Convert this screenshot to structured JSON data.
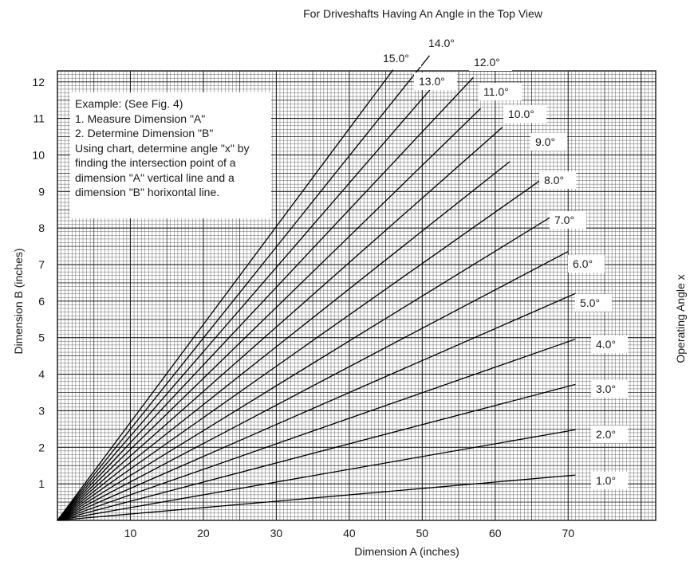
{
  "chart_data": {
    "type": "line",
    "title": "For Driveshafts Having An Angle in the Top View",
    "xlabel": "Dimension A (inches)",
    "ylabel": "Dimension B (inches)",
    "right_label": "Operating Angle x",
    "xlim": [
      0,
      82
    ],
    "ylim": [
      0,
      12.3
    ],
    "grid": true,
    "x_ticks": [
      10,
      20,
      30,
      40,
      50,
      60,
      70
    ],
    "y_ticks": [
      1,
      2,
      3,
      4,
      5,
      6,
      7,
      8,
      9,
      10,
      11,
      12
    ],
    "series": [
      {
        "name": "1.0°",
        "x": [
          0,
          71
        ],
        "y": [
          0,
          1.24
        ]
      },
      {
        "name": "2.0°",
        "x": [
          0,
          71
        ],
        "y": [
          0,
          2.48
        ]
      },
      {
        "name": "3.0°",
        "x": [
          0,
          71
        ],
        "y": [
          0,
          3.72
        ]
      },
      {
        "name": "4.0°",
        "x": [
          0,
          71
        ],
        "y": [
          0,
          4.96
        ]
      },
      {
        "name": "5.0°",
        "x": [
          0,
          71
        ],
        "y": [
          0,
          6.21
        ]
      },
      {
        "name": "6.0°",
        "x": [
          0,
          70
        ],
        "y": [
          0,
          7.36
        ]
      },
      {
        "name": "7.0°",
        "x": [
          0,
          68.5
        ],
        "y": [
          0,
          8.41
        ]
      },
      {
        "name": "8.0°",
        "x": [
          0,
          67
        ],
        "y": [
          0,
          9.42
        ]
      },
      {
        "name": "9.0°",
        "x": [
          0,
          62
        ],
        "y": [
          0,
          9.82
        ]
      },
      {
        "name": "10.0°",
        "x": [
          0,
          61
        ],
        "y": [
          0,
          10.76
        ]
      },
      {
        "name": "11.0°",
        "x": [
          0,
          58
        ],
        "y": [
          0,
          11.27
        ]
      },
      {
        "name": "12.0°",
        "x": [
          0,
          57
        ],
        "y": [
          0,
          12.12
        ]
      },
      {
        "name": "13.0°",
        "x": [
          0,
          52
        ],
        "y": [
          0,
          12.0
        ]
      },
      {
        "name": "14.0°",
        "x": [
          0,
          51
        ],
        "y": [
          0,
          12.72
        ]
      },
      {
        "name": "15.0°",
        "x": [
          0,
          46
        ],
        "y": [
          0,
          12.33
        ]
      }
    ],
    "annotations": [
      "Example: (See Fig. 4)",
      "1. Measure Dimension \"A\"",
      "2. Determine Dimension \"B\"",
      "Using chart, determine angle \"x\" by",
      "finding the intersection point of a",
      "dimension \"A\" vertical line and a",
      "dimension \"B\" horixontal line."
    ]
  }
}
